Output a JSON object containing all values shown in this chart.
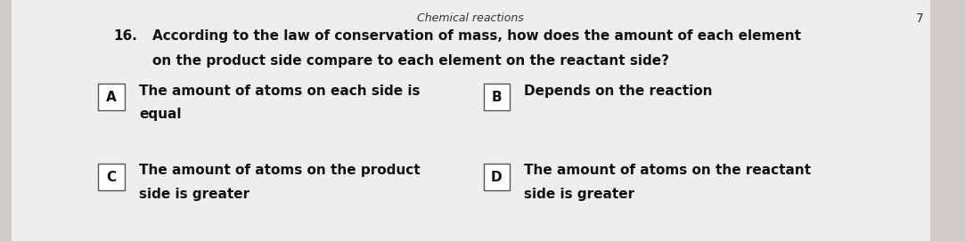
{
  "bg_color": "#d0ccc8",
  "paper_color": "#f0eeec",
  "header": "Chemical reactions",
  "question_num": "16.",
  "question_text1": "According to the law of conservation of mass, how does the amount of each element",
  "question_text2": "on the product side compare to each element on the reactant side?",
  "options": [
    {
      "label": "A",
      "text1": "The amount of atoms on each side is",
      "text2": "equal"
    },
    {
      "label": "B",
      "text1": "Depends on the reaction",
      "text2": ""
    },
    {
      "label": "C",
      "text1": "The amount of atoms on the product",
      "text2": "side is greater"
    },
    {
      "label": "D",
      "text1": "The amount of atoms on the reactant",
      "text2": "side is greater"
    }
  ],
  "page_num": "7",
  "font_size_header": 9,
  "font_size_question": 11,
  "font_size_option": 11,
  "font_size_label": 11
}
